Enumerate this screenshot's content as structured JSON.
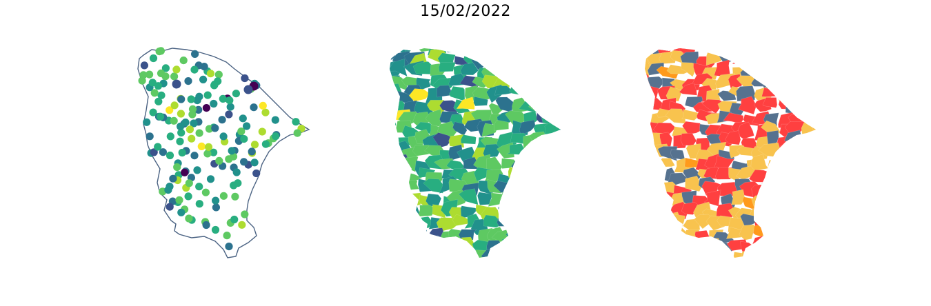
{
  "title": "15/02/2022",
  "colors": {
    "outline": "#4a6282",
    "viridis": [
      "#440154",
      "#3b528b",
      "#2c728e",
      "#21918c",
      "#28ae80",
      "#5ec962",
      "#addc30",
      "#fde725"
    ],
    "classes": [
      "#ff4040",
      "#f8c34e",
      "#56728f",
      "#ff9a1c"
    ]
  },
  "panels": [
    {
      "name": "station-points-map"
    },
    {
      "name": "municipality-choropleth-map"
    },
    {
      "name": "classified-municipality-map"
    }
  ]
}
